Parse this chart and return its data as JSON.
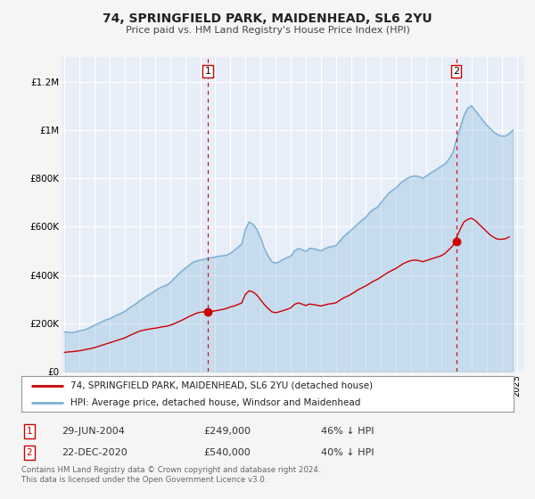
{
  "title": "74, SPRINGFIELD PARK, MAIDENHEAD, SL6 2YU",
  "subtitle": "Price paid vs. HM Land Registry's House Price Index (HPI)",
  "background_color": "#f5f5f5",
  "plot_bg_color": "#e8eef8",
  "grid_color": "#ffffff",
  "hpi_color": "#7ab0d4",
  "price_color": "#cc0000",
  "annotation_color": "#cc0000",
  "ylim": [
    0,
    1300000
  ],
  "xlim_start": 1994.8,
  "xlim_end": 2025.5,
  "yticks": [
    0,
    200000,
    400000,
    600000,
    800000,
    1000000,
    1200000
  ],
  "ytick_labels": [
    "£0",
    "£200K",
    "£400K",
    "£600K",
    "£800K",
    "£1M",
    "£1.2M"
  ],
  "xticks": [
    1995,
    1996,
    1997,
    1998,
    1999,
    2000,
    2001,
    2002,
    2003,
    2004,
    2005,
    2006,
    2007,
    2008,
    2009,
    2010,
    2011,
    2012,
    2013,
    2014,
    2015,
    2016,
    2017,
    2018,
    2019,
    2020,
    2021,
    2022,
    2023,
    2024,
    2025
  ],
  "marker1_x": 2004.5,
  "marker1_y": 249000,
  "marker1_label": "1",
  "marker1_date": "29-JUN-2004",
  "marker1_price": "£249,000",
  "marker1_hpi": "46% ↓ HPI",
  "marker2_x": 2020.98,
  "marker2_y": 540000,
  "marker2_label": "2",
  "marker2_date": "22-DEC-2020",
  "marker2_price": "£540,000",
  "marker2_hpi": "40% ↓ HPI",
  "legend_line1": "74, SPRINGFIELD PARK, MAIDENHEAD, SL6 2YU (detached house)",
  "legend_line2": "HPI: Average price, detached house, Windsor and Maidenhead",
  "footer1": "Contains HM Land Registry data © Crown copyright and database right 2024.",
  "footer2": "This data is licensed under the Open Government Licence v3.0.",
  "hpi_data_x": [
    1995.0,
    1995.25,
    1995.5,
    1995.75,
    1996.0,
    1996.25,
    1996.5,
    1996.75,
    1997.0,
    1997.25,
    1997.5,
    1997.75,
    1998.0,
    1998.25,
    1998.5,
    1998.75,
    1999.0,
    1999.25,
    1999.5,
    1999.75,
    2000.0,
    2000.25,
    2000.5,
    2000.75,
    2001.0,
    2001.25,
    2001.5,
    2001.75,
    2002.0,
    2002.25,
    2002.5,
    2002.75,
    2003.0,
    2003.25,
    2003.5,
    2003.75,
    2004.0,
    2004.25,
    2004.5,
    2004.75,
    2005.0,
    2005.25,
    2005.5,
    2005.75,
    2006.0,
    2006.25,
    2006.5,
    2006.75,
    2007.0,
    2007.25,
    2007.5,
    2007.75,
    2008.0,
    2008.25,
    2008.5,
    2008.75,
    2009.0,
    2009.25,
    2009.5,
    2009.75,
    2010.0,
    2010.25,
    2010.5,
    2010.75,
    2011.0,
    2011.25,
    2011.5,
    2011.75,
    2012.0,
    2012.25,
    2012.5,
    2012.75,
    2013.0,
    2013.25,
    2013.5,
    2013.75,
    2014.0,
    2014.25,
    2014.5,
    2014.75,
    2015.0,
    2015.25,
    2015.5,
    2015.75,
    2016.0,
    2016.25,
    2016.5,
    2016.75,
    2017.0,
    2017.25,
    2017.5,
    2017.75,
    2018.0,
    2018.25,
    2018.5,
    2018.75,
    2019.0,
    2019.25,
    2019.5,
    2019.75,
    2020.0,
    2020.25,
    2020.5,
    2020.75,
    2021.0,
    2021.25,
    2021.5,
    2021.75,
    2022.0,
    2022.25,
    2022.5,
    2022.75,
    2023.0,
    2023.25,
    2023.5,
    2023.75,
    2024.0,
    2024.25,
    2024.5,
    2024.75
  ],
  "hpi_data_y": [
    165000,
    163000,
    162000,
    165000,
    170000,
    172000,
    178000,
    185000,
    193000,
    200000,
    208000,
    215000,
    220000,
    228000,
    235000,
    242000,
    250000,
    262000,
    272000,
    282000,
    295000,
    305000,
    315000,
    325000,
    335000,
    345000,
    352000,
    358000,
    368000,
    385000,
    400000,
    415000,
    428000,
    440000,
    452000,
    458000,
    462000,
    465000,
    468000,
    472000,
    475000,
    478000,
    480000,
    482000,
    490000,
    502000,
    515000,
    528000,
    590000,
    620000,
    610000,
    590000,
    555000,
    510000,
    480000,
    455000,
    450000,
    455000,
    465000,
    472000,
    478000,
    500000,
    510000,
    505000,
    498000,
    510000,
    510000,
    505000,
    500000,
    508000,
    515000,
    518000,
    522000,
    540000,
    558000,
    572000,
    585000,
    600000,
    615000,
    628000,
    640000,
    660000,
    672000,
    680000,
    700000,
    720000,
    738000,
    750000,
    762000,
    778000,
    790000,
    800000,
    808000,
    810000,
    808000,
    800000,
    810000,
    820000,
    830000,
    840000,
    850000,
    860000,
    880000,
    905000,
    960000,
    1010000,
    1060000,
    1090000,
    1100000,
    1080000,
    1060000,
    1040000,
    1020000,
    1005000,
    990000,
    980000,
    975000,
    975000,
    985000,
    1000000
  ],
  "price_data_x": [
    1995.0,
    1995.25,
    1995.5,
    1995.75,
    1996.0,
    1996.25,
    1996.5,
    1996.75,
    1997.0,
    1997.25,
    1997.5,
    1997.75,
    1998.0,
    1998.25,
    1998.5,
    1998.75,
    1999.0,
    1999.25,
    1999.5,
    1999.75,
    2000.0,
    2000.25,
    2000.5,
    2000.75,
    2001.0,
    2001.25,
    2001.5,
    2001.75,
    2002.0,
    2002.25,
    2002.5,
    2002.75,
    2003.0,
    2003.25,
    2003.5,
    2003.75,
    2004.0,
    2004.25,
    2004.5,
    2004.75,
    2005.0,
    2005.25,
    2005.5,
    2005.75,
    2006.0,
    2006.25,
    2006.5,
    2006.75,
    2007.0,
    2007.25,
    2007.5,
    2007.75,
    2008.0,
    2008.25,
    2008.5,
    2008.75,
    2009.0,
    2009.25,
    2009.5,
    2009.75,
    2010.0,
    2010.25,
    2010.5,
    2010.75,
    2011.0,
    2011.25,
    2011.5,
    2011.75,
    2012.0,
    2012.25,
    2012.5,
    2012.75,
    2013.0,
    2013.25,
    2013.5,
    2013.75,
    2014.0,
    2014.25,
    2014.5,
    2014.75,
    2015.0,
    2015.25,
    2015.5,
    2015.75,
    2016.0,
    2016.25,
    2016.5,
    2016.75,
    2017.0,
    2017.25,
    2017.5,
    2017.75,
    2018.0,
    2018.25,
    2018.5,
    2018.75,
    2019.0,
    2019.25,
    2019.5,
    2019.75,
    2020.0,
    2020.25,
    2020.5,
    2020.75,
    2021.0,
    2021.25,
    2021.5,
    2021.75,
    2022.0,
    2022.25,
    2022.5,
    2022.75,
    2023.0,
    2023.25,
    2023.5,
    2023.75,
    2024.0,
    2024.25,
    2024.5
  ],
  "price_data_y": [
    80000,
    82000,
    83000,
    85000,
    87000,
    90000,
    93000,
    96000,
    100000,
    105000,
    110000,
    115000,
    120000,
    125000,
    130000,
    135000,
    140000,
    148000,
    155000,
    162000,
    168000,
    172000,
    175000,
    178000,
    180000,
    183000,
    186000,
    188000,
    192000,
    198000,
    205000,
    212000,
    220000,
    228000,
    235000,
    242000,
    246000,
    248000,
    249000,
    250000,
    252000,
    255000,
    258000,
    262000,
    268000,
    272000,
    278000,
    284000,
    320000,
    335000,
    330000,
    318000,
    298000,
    278000,
    262000,
    248000,
    244000,
    248000,
    253000,
    258000,
    264000,
    278000,
    285000,
    280000,
    274000,
    280000,
    278000,
    275000,
    272000,
    276000,
    280000,
    282000,
    285000,
    295000,
    305000,
    312000,
    320000,
    330000,
    340000,
    348000,
    356000,
    365000,
    375000,
    382000,
    392000,
    402000,
    412000,
    420000,
    428000,
    438000,
    448000,
    455000,
    460000,
    462000,
    460000,
    455000,
    460000,
    465000,
    470000,
    475000,
    480000,
    490000,
    505000,
    520000,
    555000,
    590000,
    620000,
    630000,
    635000,
    625000,
    610000,
    595000,
    580000,
    565000,
    555000,
    548000,
    548000,
    550000,
    558000
  ]
}
